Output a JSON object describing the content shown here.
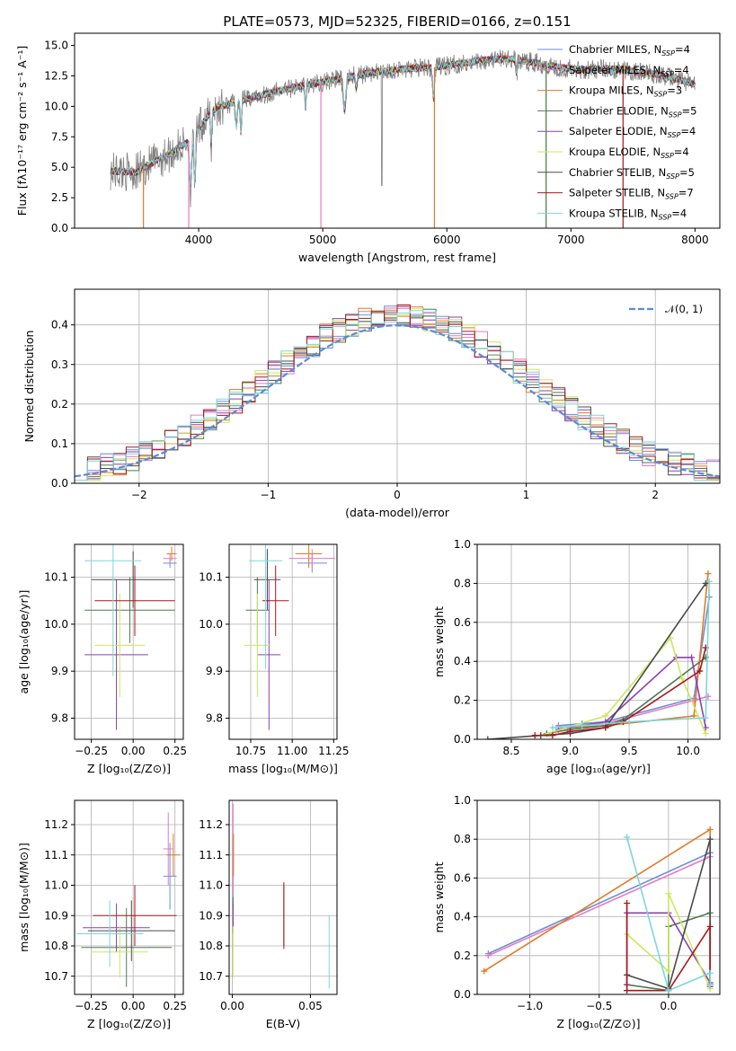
{
  "spectrum_colors": [
    "#6b8fd8",
    "#e87ac0",
    "#e07a26",
    "#4f7a52",
    "#8e3fb0",
    "#cbe85e",
    "#4a4a4a",
    "#a8161a",
    "#7ad6de"
  ],
  "chart_data": [
    {
      "id": "spectrum",
      "type": "line",
      "title": "PLATE=0573, MJD=52325, FIBERID=0166, z=0.151",
      "xlabel": "wavelength [Angstrom, rest frame]",
      "ylabel": "Flux [fλ10⁻¹⁷ erg cm⁻² s⁻¹ A⁻¹]",
      "xlim": [
        3000,
        8200
      ],
      "ylim": [
        0,
        16
      ],
      "xticks": [
        4000,
        5000,
        6000,
        7000,
        8000
      ],
      "yticks": [
        0.0,
        2.5,
        5.0,
        7.5,
        10.0,
        12.5,
        15.0
      ],
      "xtick_labels": [
        "4000",
        "5000",
        "6000",
        "7000",
        "8000"
      ],
      "ytick_labels": [
        "0.0",
        "2.5",
        "5.0",
        "7.5",
        "10.0",
        "12.5",
        "15.0"
      ],
      "grid": false,
      "legend_placement": "top-right",
      "series": [
        {
          "name": "Chabrier MILES, N",
          "sub": "SSP",
          "tail": "=4"
        },
        {
          "name": "Salpeter MILES, N",
          "sub": "SSP",
          "tail": "=4"
        },
        {
          "name": "Kroupa MILES, N",
          "sub": "SSP",
          "tail": "=3"
        },
        {
          "name": "Chabrier ELODIE, N",
          "sub": "SSP",
          "tail": "=5"
        },
        {
          "name": "Salpeter ELODIE, N",
          "sub": "SSP",
          "tail": "=4"
        },
        {
          "name": "Kroupa ELODIE, N",
          "sub": "SSP",
          "tail": "=4"
        },
        {
          "name": "Chabrier STELIB, N",
          "sub": "SSP",
          "tail": "=5"
        },
        {
          "name": "Salpeter STELIB, N",
          "sub": "SSP",
          "tail": "=7"
        },
        {
          "name": "Kroupa STELIB, N",
          "sub": "SSP",
          "tail": "=4"
        }
      ],
      "continuum": {
        "x": [
          3300,
          3500,
          3600,
          3800,
          3950,
          4100,
          4300,
          4500,
          4700,
          4900,
          5100,
          5300,
          5500,
          5700,
          5900,
          6100,
          6300,
          6500,
          6700,
          6900,
          7100,
          7300,
          7500,
          7700,
          7900,
          8000
        ],
        "y": [
          4.7,
          4.6,
          5.2,
          6.3,
          7.4,
          9.6,
          10.4,
          10.9,
          11.4,
          11.8,
          12.2,
          12.6,
          12.9,
          13.1,
          13.2,
          13.5,
          13.8,
          13.9,
          13.6,
          13.2,
          13.0,
          13.1,
          12.9,
          12.6,
          12.1,
          11.8
        ]
      }
    },
    {
      "id": "residuals",
      "type": "line",
      "xlabel": "(data-model)/error",
      "ylabel": "Normed distribution",
      "xlim": [
        -2.5,
        2.5
      ],
      "ylim": [
        0,
        0.49
      ],
      "xticks": [
        -2,
        -1,
        0,
        1,
        2
      ],
      "xtick_labels": [
        "−2",
        "−1",
        "0",
        "1",
        "2"
      ],
      "yticks": [
        0.0,
        0.1,
        0.2,
        0.3,
        0.4
      ],
      "ytick_labels": [
        "0.0",
        "0.1",
        "0.2",
        "0.3",
        "0.4"
      ],
      "grid": true,
      "legend_placement": "top-right",
      "legend": "𝒩(0, 1)",
      "bins": {
        "start": -2.5,
        "width": 0.1,
        "count": 50
      },
      "normal": {
        "mean": 0,
        "sigma": 1,
        "color": "#5b8ad6"
      }
    },
    {
      "id": "age-vs-Z",
      "type": "scatter",
      "xlabel": "Z [log₁₀(Z/Z⊙)]",
      "ylabel": "age  [log₁₀(age/yr)]",
      "xlim": [
        -0.35,
        0.3
      ],
      "ylim": [
        9.755,
        10.17
      ],
      "xticks": [
        -0.25,
        0.0,
        0.25
      ],
      "xtick_labels": [
        "−0.25",
        "0.00",
        "0.25"
      ],
      "yticks": [
        9.8,
        9.9,
        10.0,
        10.1
      ],
      "ytick_labels": [
        "9.8",
        "9.9",
        "10.0",
        "10.1"
      ],
      "grid": true,
      "points": [
        {
          "x": 0.22,
          "y": 10.13,
          "xerr": 0.04,
          "yerr": 0.01,
          "c": 0
        },
        {
          "x": 0.22,
          "y": 10.14,
          "xerr": 0.04,
          "yerr": 0.01,
          "c": 1
        },
        {
          "x": 0.23,
          "y": 10.15,
          "xerr": 0.03,
          "yerr": 0.015,
          "c": 2
        },
        {
          "x": -0.02,
          "y": 10.03,
          "xerr": 0.27,
          "yerr": 0.07,
          "c": 3
        },
        {
          "x": -0.1,
          "y": 9.935,
          "xerr": 0.19,
          "yerr": 0.16,
          "c": 4
        },
        {
          "x": -0.08,
          "y": 9.955,
          "xerr": 0.15,
          "yerr": 0.11,
          "c": 5
        },
        {
          "x": 0.0,
          "y": 10.095,
          "xerr": 0.25,
          "yerr": 0.06,
          "c": 6
        },
        {
          "x": 0.01,
          "y": 10.05,
          "xerr": 0.24,
          "yerr": 0.075,
          "c": 7
        },
        {
          "x": -0.12,
          "y": 10.135,
          "xerr": 0.17,
          "yerr": 0.245,
          "c": 8
        }
      ]
    },
    {
      "id": "age-vs-mass",
      "type": "scatter",
      "xlabel": "mass [log₁₀(M/M⊙)]",
      "xlim": [
        10.62,
        11.27
      ],
      "ylim": [
        9.755,
        10.17
      ],
      "xticks": [
        10.75,
        11.0,
        11.25
      ],
      "xtick_labels": [
        "10.75",
        "11.00",
        "11.25"
      ],
      "yticks": [
        9.8,
        9.9,
        10.0,
        10.1
      ],
      "ytick_labels": [
        "9.8",
        "9.9",
        "10.0",
        "10.1"
      ],
      "grid": true,
      "points": [
        {
          "x": 11.12,
          "y": 10.13,
          "xerr": 0.09,
          "yerr": 0.02,
          "c": 0
        },
        {
          "x": 11.12,
          "y": 10.14,
          "xerr": 0.14,
          "yerr": 0.02,
          "c": 1
        },
        {
          "x": 11.1,
          "y": 10.15,
          "xerr": 0.08,
          "yerr": 0.03,
          "c": 2
        },
        {
          "x": 10.79,
          "y": 10.03,
          "xerr": 0.07,
          "yerr": 0.07,
          "c": 3
        },
        {
          "x": 10.86,
          "y": 9.935,
          "xerr": 0.07,
          "yerr": 0.16,
          "c": 4
        },
        {
          "x": 10.79,
          "y": 9.955,
          "xerr": 0.08,
          "yerr": 0.11,
          "c": 5
        },
        {
          "x": 10.85,
          "y": 10.095,
          "xerr": 0.08,
          "yerr": 0.065,
          "c": 6
        },
        {
          "x": 10.9,
          "y": 10.05,
          "xerr": 0.08,
          "yerr": 0.075,
          "c": 7
        },
        {
          "x": 10.84,
          "y": 10.135,
          "xerr": 0.1,
          "yerr": 0.23,
          "c": 8
        }
      ]
    },
    {
      "id": "weight-vs-age",
      "type": "line",
      "xlabel": "age  [log₁₀(age/yr)]",
      "ylabel": "mass weight",
      "xlim": [
        8.21,
        10.27
      ],
      "ylim": [
        0,
        1
      ],
      "xticks": [
        8.5,
        9.0,
        9.5,
        10.0
      ],
      "xtick_labels": [
        "8.5",
        "9.0",
        "9.5",
        "10.0"
      ],
      "yticks": [
        0.0,
        0.2,
        0.4,
        0.6,
        0.8,
        1.0
      ],
      "ytick_labels": [
        "0.0",
        "0.2",
        "0.4",
        "0.6",
        "0.8",
        "1.0"
      ],
      "grid": true,
      "series": [
        {
          "c": 0,
          "x": [
            8.9,
            9.1,
            9.3,
            10.05,
            10.18
          ],
          "y": [
            0.07,
            0.08,
            0.09,
            0.21,
            0.73
          ]
        },
        {
          "c": 1,
          "x": [
            8.9,
            9.1,
            9.3,
            10.05,
            10.17
          ],
          "y": [
            0.06,
            0.07,
            0.08,
            0.2,
            0.22
          ]
        },
        {
          "c": 2,
          "x": [
            9.0,
            9.3,
            10.05,
            10.17
          ],
          "y": [
            0.06,
            0.07,
            0.12,
            0.85
          ]
        },
        {
          "c": 3,
          "x": [
            8.8,
            9.0,
            9.3,
            9.45,
            10.15
          ],
          "y": [
            0.03,
            0.05,
            0.07,
            0.1,
            0.42
          ]
        },
        {
          "c": 4,
          "x": [
            8.9,
            9.3,
            9.9,
            10.03,
            10.15
          ],
          "y": [
            0.05,
            0.09,
            0.42,
            0.42,
            0.06
          ]
        },
        {
          "c": 5,
          "x": [
            8.75,
            9.3,
            9.85,
            9.95,
            10.15
          ],
          "y": [
            0.02,
            0.12,
            0.52,
            0.31,
            0.03
          ]
        },
        {
          "c": 6,
          "x": [
            8.3,
            8.75,
            9.0,
            9.3,
            10.15
          ],
          "y": [
            0.0,
            0.02,
            0.03,
            0.06,
            0.8
          ]
        },
        {
          "c": 7,
          "x": [
            8.7,
            8.85,
            9.0,
            9.3,
            9.45,
            10.1,
            10.15
          ],
          "y": [
            0.02,
            0.02,
            0.04,
            0.06,
            0.09,
            0.35,
            0.47
          ]
        },
        {
          "c": 8,
          "x": [
            8.85,
            9.1,
            9.5,
            10.15,
            10.18
          ],
          "y": [
            0.06,
            0.07,
            0.09,
            0.11,
            0.81
          ]
        }
      ]
    },
    {
      "id": "mass-vs-Z",
      "type": "scatter",
      "xlabel": "Z [log₁₀(Z/Z⊙)]",
      "ylabel": "mass [log₁₀(M/M⊙)]",
      "xlim": [
        -0.35,
        0.3
      ],
      "ylim": [
        10.64,
        11.28
      ],
      "xticks": [
        -0.25,
        0.0,
        0.25
      ],
      "xtick_labels": [
        "−0.25",
        "0.00",
        "0.25"
      ],
      "yticks": [
        10.7,
        10.8,
        10.9,
        11.0,
        11.1,
        11.2
      ],
      "ytick_labels": [
        "10.7",
        "10.8",
        "10.9",
        "11.0",
        "11.1",
        "11.2"
      ],
      "grid": true,
      "points": [
        {
          "x": 0.22,
          "y": 11.03,
          "xerr": 0.04,
          "yerr": 0.11,
          "c": 0
        },
        {
          "x": 0.21,
          "y": 11.12,
          "xerr": 0.03,
          "yerr": 0.12,
          "c": 1
        },
        {
          "x": 0.24,
          "y": 11.1,
          "xerr": 0.04,
          "yerr": 0.07,
          "c": 2
        },
        {
          "x": -0.04,
          "y": 10.795,
          "xerr": 0.27,
          "yerr": 0.13,
          "c": 3
        },
        {
          "x": -0.1,
          "y": 10.86,
          "xerr": 0.2,
          "yerr": 0.08,
          "c": 4
        },
        {
          "x": -0.08,
          "y": 10.78,
          "xerr": 0.17,
          "yerr": 0.085,
          "c": 5
        },
        {
          "x": -0.01,
          "y": 10.85,
          "xerr": 0.26,
          "yerr": 0.1,
          "c": 6
        },
        {
          "x": 0.01,
          "y": 10.9,
          "xerr": 0.25,
          "yerr": 0.1,
          "c": 7
        },
        {
          "x": -0.14,
          "y": 10.84,
          "xerr": 0.2,
          "yerr": 0.11,
          "c": 8
        }
      ]
    },
    {
      "id": "mass-vs-EBV",
      "type": "scatter",
      "xlabel": "E(B-V)",
      "xlim": [
        -0.002,
        0.067
      ],
      "ylim": [
        10.64,
        11.28
      ],
      "xticks": [
        0.0,
        0.05
      ],
      "xtick_labels": [
        "0.00",
        "0.05"
      ],
      "yticks": [
        10.7,
        10.8,
        10.9,
        11.0,
        11.1,
        11.2
      ],
      "ytick_labels": [
        "10.7",
        "10.8",
        "10.9",
        "11.0",
        "11.1",
        "11.2"
      ],
      "grid": true,
      "points": [
        {
          "x": 0.0005,
          "y": 11.03,
          "xerr": 0,
          "yerr": 0.1,
          "c": 0
        },
        {
          "x": 0.0005,
          "y": 11.12,
          "xerr": 0,
          "yerr": 0.15,
          "c": 1
        },
        {
          "x": 0.0008,
          "y": 11.1,
          "xerr": 0,
          "yerr": 0.07,
          "c": 2
        },
        {
          "x": 0.0005,
          "y": 10.9,
          "xerr": 0,
          "yerr": 0.06,
          "c": 3
        },
        {
          "x": 0.0005,
          "y": 10.9,
          "xerr": 0,
          "yerr": 0.04,
          "c": 4
        },
        {
          "x": 0.0005,
          "y": 10.78,
          "xerr": 0,
          "yerr": 0.085,
          "c": 5
        },
        {
          "x": 0.033,
          "y": 10.9,
          "xerr": 0,
          "yerr": 0.1,
          "c": 6
        },
        {
          "x": 0.033,
          "y": 10.9,
          "xerr": 0,
          "yerr": 0.11,
          "c": 7
        },
        {
          "x": 0.062,
          "y": 10.78,
          "xerr": 0,
          "yerr": 0.12,
          "c": 8
        }
      ]
    },
    {
      "id": "weight-vs-Z",
      "type": "line",
      "xlabel": "Z [log₁₀(Z/Z⊙)]",
      "ylabel": "mass weight",
      "xlim": [
        -1.38,
        0.37
      ],
      "ylim": [
        0,
        1
      ],
      "xticks": [
        -1.0,
        -0.5,
        0.0
      ],
      "xtick_labels": [
        "−1.0",
        "−0.5",
        "0.0"
      ],
      "yticks": [
        0.0,
        0.2,
        0.4,
        0.6,
        0.8,
        1.0
      ],
      "ytick_labels": [
        "0.0",
        "0.2",
        "0.4",
        "0.6",
        "0.8",
        "1.0"
      ],
      "grid": true,
      "series": [
        {
          "c": 0,
          "x": [
            -1.3,
            0.3,
            0.3
          ],
          "y": [
            0.21,
            0.73,
            0.05
          ]
        },
        {
          "c": 1,
          "x": [
            -1.3,
            0.3,
            0.3
          ],
          "y": [
            0.2,
            0.71,
            0.05
          ]
        },
        {
          "c": 2,
          "x": [
            -1.33,
            0.3,
            0.3
          ],
          "y": [
            0.12,
            0.85,
            0.05
          ]
        },
        {
          "c": 3,
          "x": [
            -0.3,
            -0.3,
            0.0,
            0.0,
            0.3,
            0.3
          ],
          "y": [
            0.1,
            0.05,
            0.02,
            0.35,
            0.42,
            0.05
          ]
        },
        {
          "c": 4,
          "x": [
            -0.3,
            -0.3,
            0.0,
            0.3,
            0.3
          ],
          "y": [
            0.05,
            0.42,
            0.42,
            0.06,
            0.04
          ]
        },
        {
          "c": 5,
          "x": [
            -0.3,
            0.0,
            0.0,
            0.3
          ],
          "y": [
            0.31,
            0.12,
            0.52,
            0.03
          ]
        },
        {
          "c": 6,
          "x": [
            -0.3,
            0.0,
            0.3,
            0.3
          ],
          "y": [
            0.1,
            0.03,
            0.8,
            0.05
          ]
        },
        {
          "c": 7,
          "x": [
            -0.3,
            -0.3,
            0.0,
            0.3,
            0.3
          ],
          "y": [
            0.47,
            0.02,
            0.02,
            0.35,
            0.05
          ]
        },
        {
          "c": 8,
          "x": [
            -0.3,
            0.0,
            0.3,
            0.3
          ],
          "y": [
            0.81,
            0.02,
            0.11,
            0.05
          ]
        }
      ]
    }
  ]
}
